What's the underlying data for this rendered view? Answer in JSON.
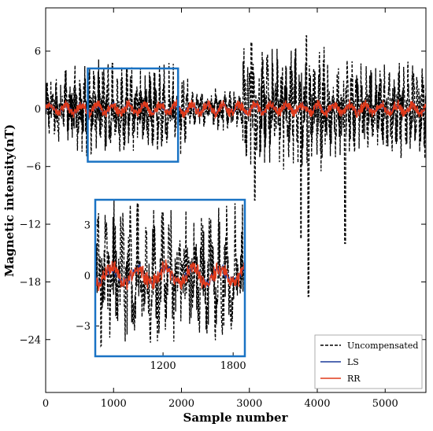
{
  "chart_data": {
    "type": "line",
    "xlabel": "Sample number",
    "ylabel": "Magnetic intensity(nT)",
    "xlim": [
      0,
      5600
    ],
    "ylim": [
      -29.5,
      10.5
    ],
    "xticks": [
      0,
      1000,
      2000,
      3000,
      4000,
      5000
    ],
    "yticks": [
      6,
      0,
      -6,
      -12,
      -18,
      -24
    ],
    "grid": false,
    "legend_position": "bottom-right",
    "series": [
      {
        "name": "Uncompensated",
        "color": "#000000",
        "style": "dashed"
      },
      {
        "name": "LS",
        "color": "#1a3a9a",
        "style": "solid"
      },
      {
        "name": "RR",
        "color": "#e03a1a",
        "style": "solid"
      }
    ],
    "highlight_box": {
      "x": [
        620,
        1950
      ],
      "y": [
        -5.5,
        4.2
      ],
      "color": "#1a73c4"
    },
    "inset": {
      "xlim": [
        620,
        1900
      ],
      "ylim": [
        -4.8,
        4.5
      ],
      "xticks": [
        1200,
        1800
      ],
      "yticks": [
        3,
        0,
        -3
      ],
      "color": "#1a73c4"
    }
  }
}
